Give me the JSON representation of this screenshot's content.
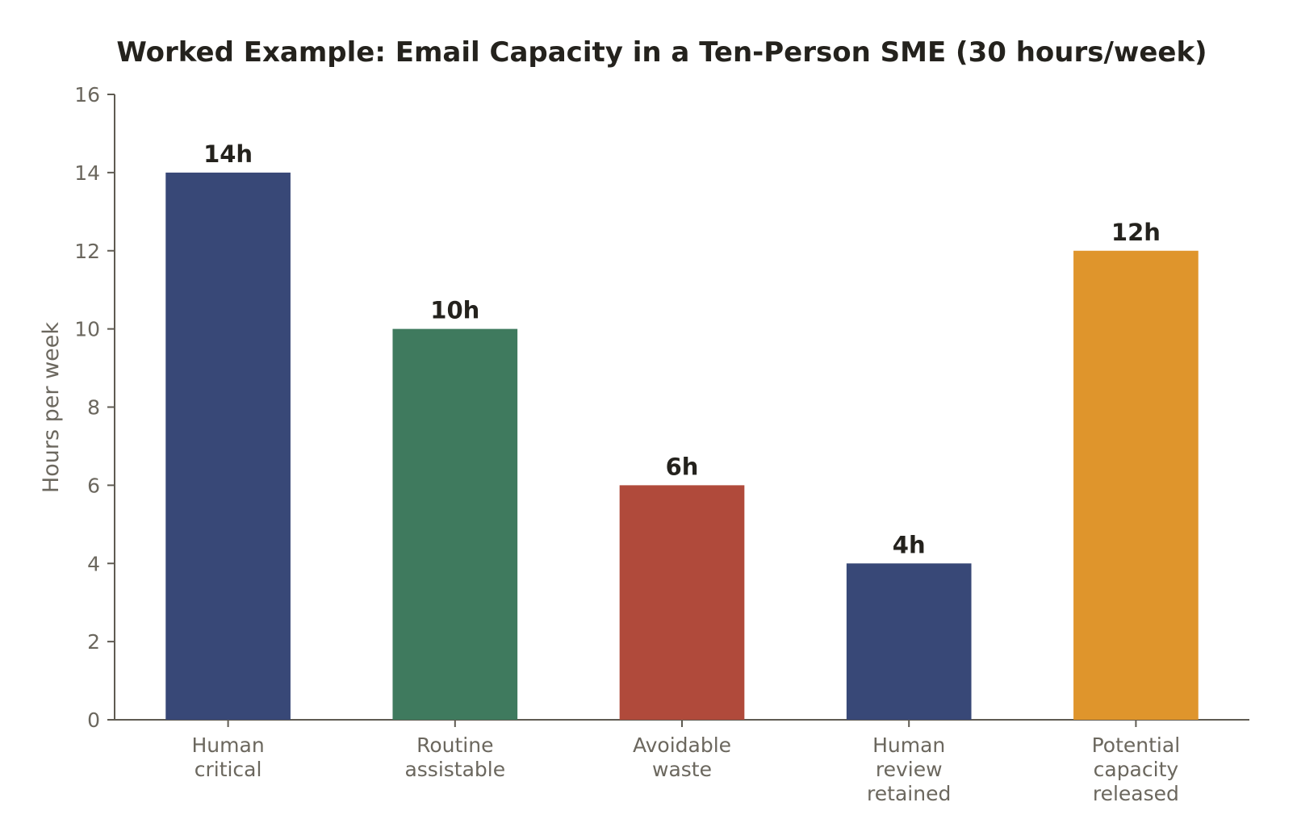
{
  "chart_data": {
    "type": "bar",
    "title": "Worked Example: Email Capacity in a Ten-Person SME (30 hours/week)",
    "xlabel": "",
    "ylabel": "Hours per week",
    "ylim": [
      0,
      16
    ],
    "yticks": [
      0,
      2,
      4,
      6,
      8,
      10,
      12,
      14,
      16
    ],
    "grid": false,
    "categories": [
      [
        "Human",
        "critical"
      ],
      [
        "Routine",
        "assistable"
      ],
      [
        "Avoidable",
        "waste"
      ],
      [
        "Human",
        "review",
        "retained"
      ],
      [
        "Potential",
        "capacity",
        "released"
      ]
    ],
    "values": [
      14,
      10,
      6,
      4,
      12
    ],
    "data_labels": [
      "14h",
      "10h",
      "6h",
      "4h",
      "12h"
    ],
    "colors": [
      "#384877",
      "#3f7a5e",
      "#b04a3b",
      "#384877",
      "#df952c"
    ]
  }
}
